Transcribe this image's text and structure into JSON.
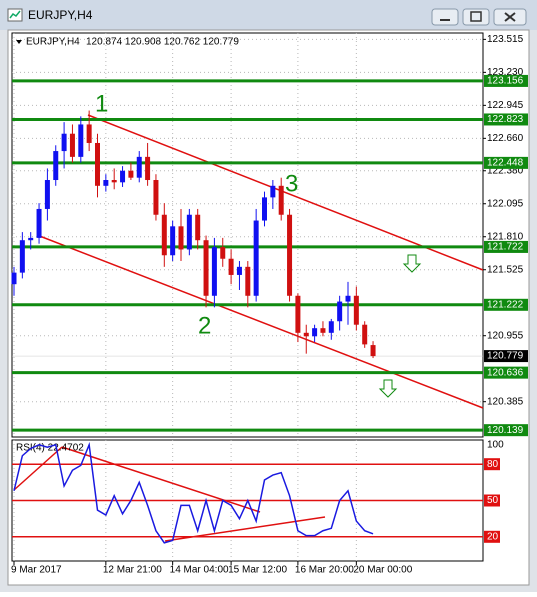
{
  "window": {
    "title": "EURJPY,H4"
  },
  "chart_data": {
    "type": "candlestick",
    "symbol": "EURJPY,H4",
    "quote": "120.874 120.908 120.762 120.779",
    "open": [
      121.4,
      121.5,
      121.78,
      121.8,
      122.05,
      122.3,
      122.55,
      122.7,
      122.5,
      122.78,
      122.62,
      122.25,
      122.3,
      122.28,
      122.38,
      122.32,
      122.5,
      122.3,
      122.0,
      121.65,
      121.9,
      121.7,
      122.0,
      121.78,
      121.3,
      121.72,
      121.62,
      121.48,
      121.55,
      121.3,
      121.95,
      122.15,
      122.25,
      122.0,
      121.3,
      120.98,
      120.95,
      121.02,
      120.98,
      121.08,
      121.25,
      121.3,
      121.05,
      120.874
    ],
    "high": [
      121.55,
      121.85,
      121.85,
      122.1,
      122.4,
      122.6,
      122.8,
      122.78,
      122.85,
      122.9,
      122.7,
      122.35,
      122.4,
      122.42,
      122.45,
      122.55,
      122.62,
      122.35,
      122.1,
      121.95,
      122.05,
      122.05,
      122.05,
      121.82,
      121.8,
      121.8,
      121.7,
      121.6,
      121.6,
      122.05,
      122.2,
      122.3,
      122.32,
      122.05,
      121.32,
      121.05,
      121.05,
      121.08,
      121.1,
      121.3,
      121.42,
      121.38,
      121.08,
      120.908
    ],
    "low": [
      121.3,
      121.45,
      121.7,
      121.75,
      121.95,
      122.25,
      122.4,
      122.45,
      122.45,
      122.55,
      122.15,
      122.2,
      122.22,
      122.24,
      122.3,
      122.28,
      122.25,
      121.95,
      121.55,
      121.6,
      121.6,
      121.65,
      121.7,
      121.2,
      121.2,
      121.55,
      121.4,
      121.35,
      121.2,
      121.25,
      121.9,
      122.05,
      121.95,
      121.25,
      120.9,
      120.8,
      120.9,
      120.95,
      120.92,
      121.0,
      121.05,
      121.0,
      120.85,
      120.762
    ],
    "close": [
      121.5,
      121.78,
      121.8,
      122.05,
      122.3,
      122.55,
      122.7,
      122.5,
      122.78,
      122.62,
      122.25,
      122.3,
      122.28,
      122.38,
      122.32,
      122.5,
      122.3,
      122.0,
      121.65,
      121.9,
      121.7,
      122.0,
      121.78,
      121.3,
      121.72,
      121.62,
      121.48,
      121.55,
      121.3,
      121.95,
      122.15,
      122.25,
      122.0,
      121.3,
      120.98,
      120.95,
      121.02,
      120.98,
      121.08,
      121.25,
      121.3,
      121.05,
      120.88,
      120.779
    ],
    "up_color": "#1010f0",
    "down_color": "#d01010",
    "ylim": [
      120.08,
      123.57
    ],
    "yticks": [
      123.515,
      {
        "value": 123.23,
        "label": "123.230"
      },
      122.945,
      {
        "value": 122.66,
        "label": "122.660"
      },
      {
        "value": 122.38,
        "label": "122.380"
      },
      122.095,
      {
        "value": 121.81,
        "label": "121.810"
      },
      121.525,
      120.955,
      120.385
    ],
    "xticks": [
      {
        "value": 0,
        "label": "9 Mar 2017"
      },
      {
        "value": 11,
        "label": "12 Mar 21:00"
      },
      {
        "value": 19,
        "label": "14 Mar 04:00"
      },
      {
        "value": 26,
        "label": "15 Mar 12:00"
      },
      {
        "value": 34,
        "label": "16 Mar 20:00"
      },
      {
        "value": 41,
        "label": "20 Mar 00:00"
      }
    ],
    "levels": [
      123.156,
      122.823,
      122.448,
      121.722,
      121.222,
      120.636,
      120.139
    ],
    "level_color": "#108a10",
    "annotations": [
      "1",
      "2",
      "3"
    ],
    "grid": true
  },
  "indicator": {
    "type": "line",
    "name": "RSI(4) 22.4702",
    "color": "#1a1ae0",
    "values": [
      58,
      87,
      93,
      96,
      94,
      96,
      62,
      75,
      79,
      96,
      42,
      38,
      54,
      39,
      50,
      65,
      46,
      25,
      15,
      17,
      46,
      46,
      25,
      50,
      25,
      50,
      46,
      35,
      50,
      33,
      67,
      71,
      73,
      54,
      25,
      21,
      21,
      25,
      27,
      50,
      58,
      33,
      25,
      22.4702
    ],
    "ylim": [
      0,
      100
    ],
    "yticks": [
      100
    ],
    "levels": [
      80,
      50,
      20
    ],
    "level_color": "#e01010"
  }
}
